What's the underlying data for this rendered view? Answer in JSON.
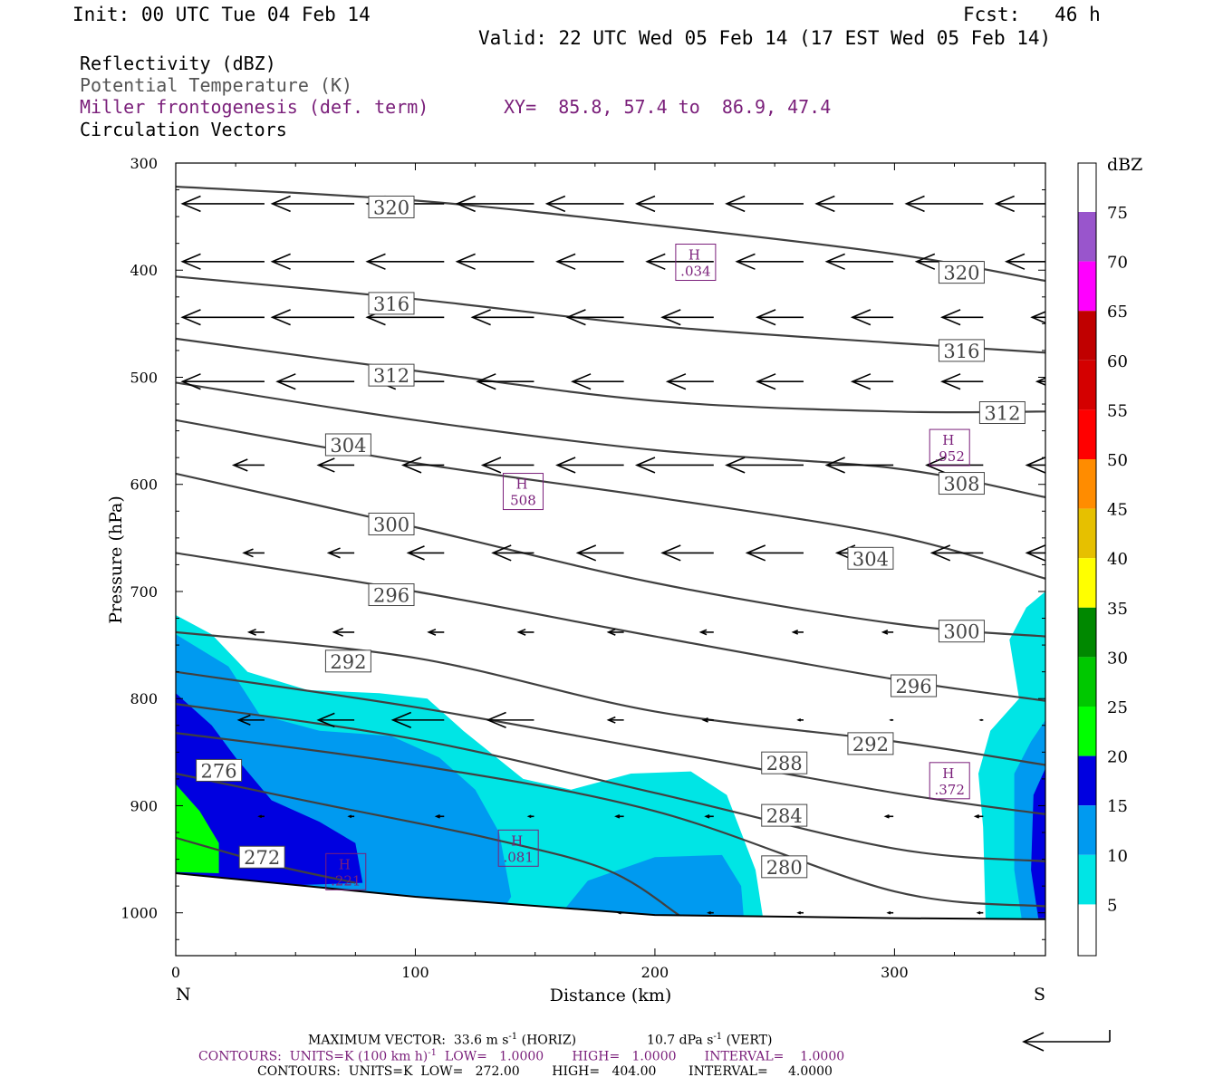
{
  "header": {
    "init": "Init: 00 UTC Tue 04 Feb 14",
    "fcst": "Fcst:   46 h",
    "valid": "Valid: 22 UTC Wed 05 Feb 14 (17 EST Wed 05 Feb 14)",
    "field_reflectivity": "Reflectivity (dBZ)",
    "field_theta": "Potential Temperature (K)",
    "field_miller": "Miller frontogenesis (def. term)",
    "xy": "XY=  85.8, 57.4 to  86.9, 47.4",
    "field_vectors": "Circulation Vectors"
  },
  "footer": {
    "max_vector": "MAXIMUM VECTOR:  33.6 m s",
    "max_vector_sup": "-1",
    "max_vector_horiz": " (HORIZ)",
    "max_vector_vert": "10.7 dPa s",
    "max_vector_vert_sup": "-1",
    "max_vector_vert_tail": " (VERT)",
    "contours1_a": "CONTOURS:  UNITS=K (100 km h)",
    "contours1_sup": "-1",
    "contours1_b": "  LOW=   1.0000       HIGH=   1.0000       INTERVAL=    1.0000",
    "contours2": "CONTOURS:  UNITS=K  LOW=   272.00        HIGH=   404.00        INTERVAL=     4.0000"
  },
  "colors": {
    "dbz5": "#00e5e5",
    "dbz10": "#009af0",
    "dbz15": "#0000e0",
    "dbz20": "#00ff00",
    "dbz25": "#00c800",
    "dbz30": "#008800",
    "dbz35": "#ffff00",
    "dbz40": "#e6c000",
    "dbz45": "#ff8c00",
    "dbz50": "#ff0000",
    "dbz55": "#d40000",
    "dbz60": "#c00000",
    "dbz65": "#ff00ff",
    "dbz70": "#9955cc",
    "theta_line": "#404040",
    "miller": "#7a1f7a"
  },
  "chart_data": {
    "type": "cross-section",
    "xlabel": "Distance (km)",
    "ylabel": "Pressure (hPa)",
    "xlim": [
      0,
      363
    ],
    "ylim": [
      1040,
      300
    ],
    "x_ticks": [
      "0",
      "100",
      "200",
      "300"
    ],
    "y_ticks": [
      "300",
      "400",
      "500",
      "600",
      "700",
      "800",
      "900",
      "1000"
    ],
    "left_end": "N",
    "right_end": "S",
    "colorbar_title": "dBZ",
    "colorbar_labels": [
      "5",
      "10",
      "15",
      "20",
      "25",
      "30",
      "35",
      "40",
      "45",
      "50",
      "55",
      "60",
      "65",
      "70",
      "75"
    ],
    "theta_contours": [
      {
        "label": "320",
        "points": [
          [
            0,
            322
          ],
          [
            100,
            335
          ],
          [
            200,
            358
          ],
          [
            300,
            385
          ],
          [
            363,
            410
          ]
        ],
        "labels_at": [
          [
            90,
            341
          ],
          [
            328,
            402
          ]
        ]
      },
      {
        "label": "316",
        "points": [
          [
            0,
            406
          ],
          [
            100,
            427
          ],
          [
            200,
            452
          ],
          [
            300,
            468
          ],
          [
            363,
            477
          ]
        ],
        "labels_at": [
          [
            90,
            431
          ],
          [
            328,
            475
          ]
        ]
      },
      {
        "label": "312",
        "points": [
          [
            0,
            464
          ],
          [
            100,
            494
          ],
          [
            200,
            522
          ],
          [
            300,
            532
          ],
          [
            363,
            532
          ]
        ],
        "labels_at": [
          [
            90,
            498
          ],
          [
            345,
            533
          ]
        ]
      },
      {
        "label": "308",
        "points": [
          [
            0,
            505
          ],
          [
            100,
            540
          ],
          [
            200,
            568
          ],
          [
            300,
            585
          ],
          [
            363,
            612
          ]
        ],
        "labels_at": [
          [
            328,
            599
          ]
        ]
      },
      {
        "label": "304",
        "points": [
          [
            0,
            540
          ],
          [
            100,
            580
          ],
          [
            200,
            612
          ],
          [
            300,
            648
          ],
          [
            363,
            688
          ]
        ],
        "labels_at": [
          [
            72,
            563
          ],
          [
            290,
            669
          ]
        ]
      },
      {
        "label": "300",
        "points": [
          [
            0,
            590
          ],
          [
            100,
            640
          ],
          [
            200,
            692
          ],
          [
            300,
            730
          ],
          [
            363,
            742
          ]
        ],
        "labels_at": [
          [
            90,
            637
          ],
          [
            328,
            737
          ]
        ]
      },
      {
        "label": "296",
        "points": [
          [
            0,
            664
          ],
          [
            100,
            700
          ],
          [
            200,
            742
          ],
          [
            300,
            782
          ],
          [
            363,
            802
          ]
        ],
        "labels_at": [
          [
            90,
            703
          ],
          [
            308,
            788
          ]
        ]
      },
      {
        "label": "292",
        "points": [
          [
            0,
            738
          ],
          [
            100,
            762
          ],
          [
            200,
            812
          ],
          [
            300,
            840
          ],
          [
            363,
            862
          ]
        ],
        "labels_at": [
          [
            72,
            765
          ],
          [
            290,
            842
          ]
        ]
      },
      {
        "label": "288",
        "points": [
          [
            0,
            775
          ],
          [
            100,
            808
          ],
          [
            200,
            848
          ],
          [
            300,
            888
          ],
          [
            363,
            908
          ]
        ],
        "labels_at": [
          [
            254,
            860
          ]
        ]
      },
      {
        "label": "284",
        "points": [
          [
            0,
            805
          ],
          [
            100,
            838
          ],
          [
            200,
            888
          ],
          [
            300,
            940
          ],
          [
            363,
            952
          ]
        ],
        "labels_at": [
          [
            254,
            909
          ]
        ]
      },
      {
        "label": "280",
        "points": [
          [
            0,
            832
          ],
          [
            100,
            862
          ],
          [
            200,
            905
          ],
          [
            300,
            980
          ],
          [
            363,
            994
          ]
        ],
        "labels_at": [
          [
            254,
            957
          ]
        ]
      },
      {
        "label": "276",
        "points": [
          [
            0,
            870
          ],
          [
            60,
            898
          ],
          [
            130,
            930
          ],
          [
            180,
            960
          ],
          [
            210,
            1002
          ]
        ],
        "labels_at": [
          [
            18,
            867
          ]
        ]
      },
      {
        "label": "272",
        "points": [
          [
            0,
            930
          ],
          [
            40,
            955
          ],
          [
            75,
            972
          ]
        ],
        "labels_at": [
          [
            36,
            948
          ]
        ]
      }
    ],
    "frontogenesis_maxima": [
      {
        "label": "H",
        "value": ".034",
        "x": 217,
        "y": 396
      },
      {
        "label": "H",
        "value": ".952",
        "x": 323,
        "y": 569
      },
      {
        "label": "H",
        "value": "508",
        "x": 145,
        "y": 610
      },
      {
        "label": "H",
        "value": ".372",
        "x": 323,
        "y": 880
      },
      {
        "label": "H",
        "value": ".081",
        "x": 143,
        "y": 943
      },
      {
        "label": "H",
        "value": ".221",
        "x": 71,
        "y": 965
      }
    ],
    "terrain": [
      [
        0,
        963
      ],
      [
        100,
        985
      ],
      [
        200,
        1002
      ],
      [
        300,
        1005
      ],
      [
        363,
        1006
      ]
    ],
    "vectors": {
      "max_horiz_ms": 33.6,
      "max_vert_dPas": 10.7,
      "rows": [
        {
          "p": 338,
          "u": [
            -32,
            -32,
            -30,
            -30,
            -30,
            -30,
            -30,
            -30,
            -30,
            -30
          ]
        },
        {
          "p": 392,
          "u": [
            -32,
            -32,
            -30,
            -30,
            -26,
            -26,
            -26,
            -26,
            -26,
            -26
          ]
        },
        {
          "p": 444,
          "u": [
            -32,
            -32,
            -30,
            -24,
            -22,
            -20,
            -18,
            -16,
            -16,
            -16
          ]
        },
        {
          "p": 504,
          "u": [
            -32,
            -30,
            -26,
            -22,
            -20,
            -18,
            -18,
            -16,
            -16,
            -14
          ]
        },
        {
          "p": 582,
          "u": [
            -12,
            -14,
            -16,
            -20,
            -26,
            -30,
            -30,
            -26,
            -22,
            -18
          ]
        },
        {
          "p": 664,
          "u": [
            -8,
            -10,
            -14,
            -16,
            -18,
            -20,
            -22,
            -22,
            -20,
            -18
          ]
        },
        {
          "p": 738,
          "u": [
            -6,
            -8,
            -6,
            -6,
            -6,
            -5,
            -4,
            -4,
            -4,
            -4
          ]
        },
        {
          "p": 820,
          "u": [
            -10,
            -14,
            -20,
            -18,
            -6,
            -4,
            -2,
            -1,
            -1,
            -1
          ]
        },
        {
          "p": 910,
          "u": [
            -2,
            -2,
            -3,
            -2,
            -3,
            -3,
            -3,
            -3,
            -3,
            -2
          ]
        },
        {
          "p": 1000,
          "u": [
            0,
            0,
            0,
            0,
            -2,
            -2,
            -2,
            -2,
            -2,
            -2
          ]
        }
      ]
    }
  }
}
